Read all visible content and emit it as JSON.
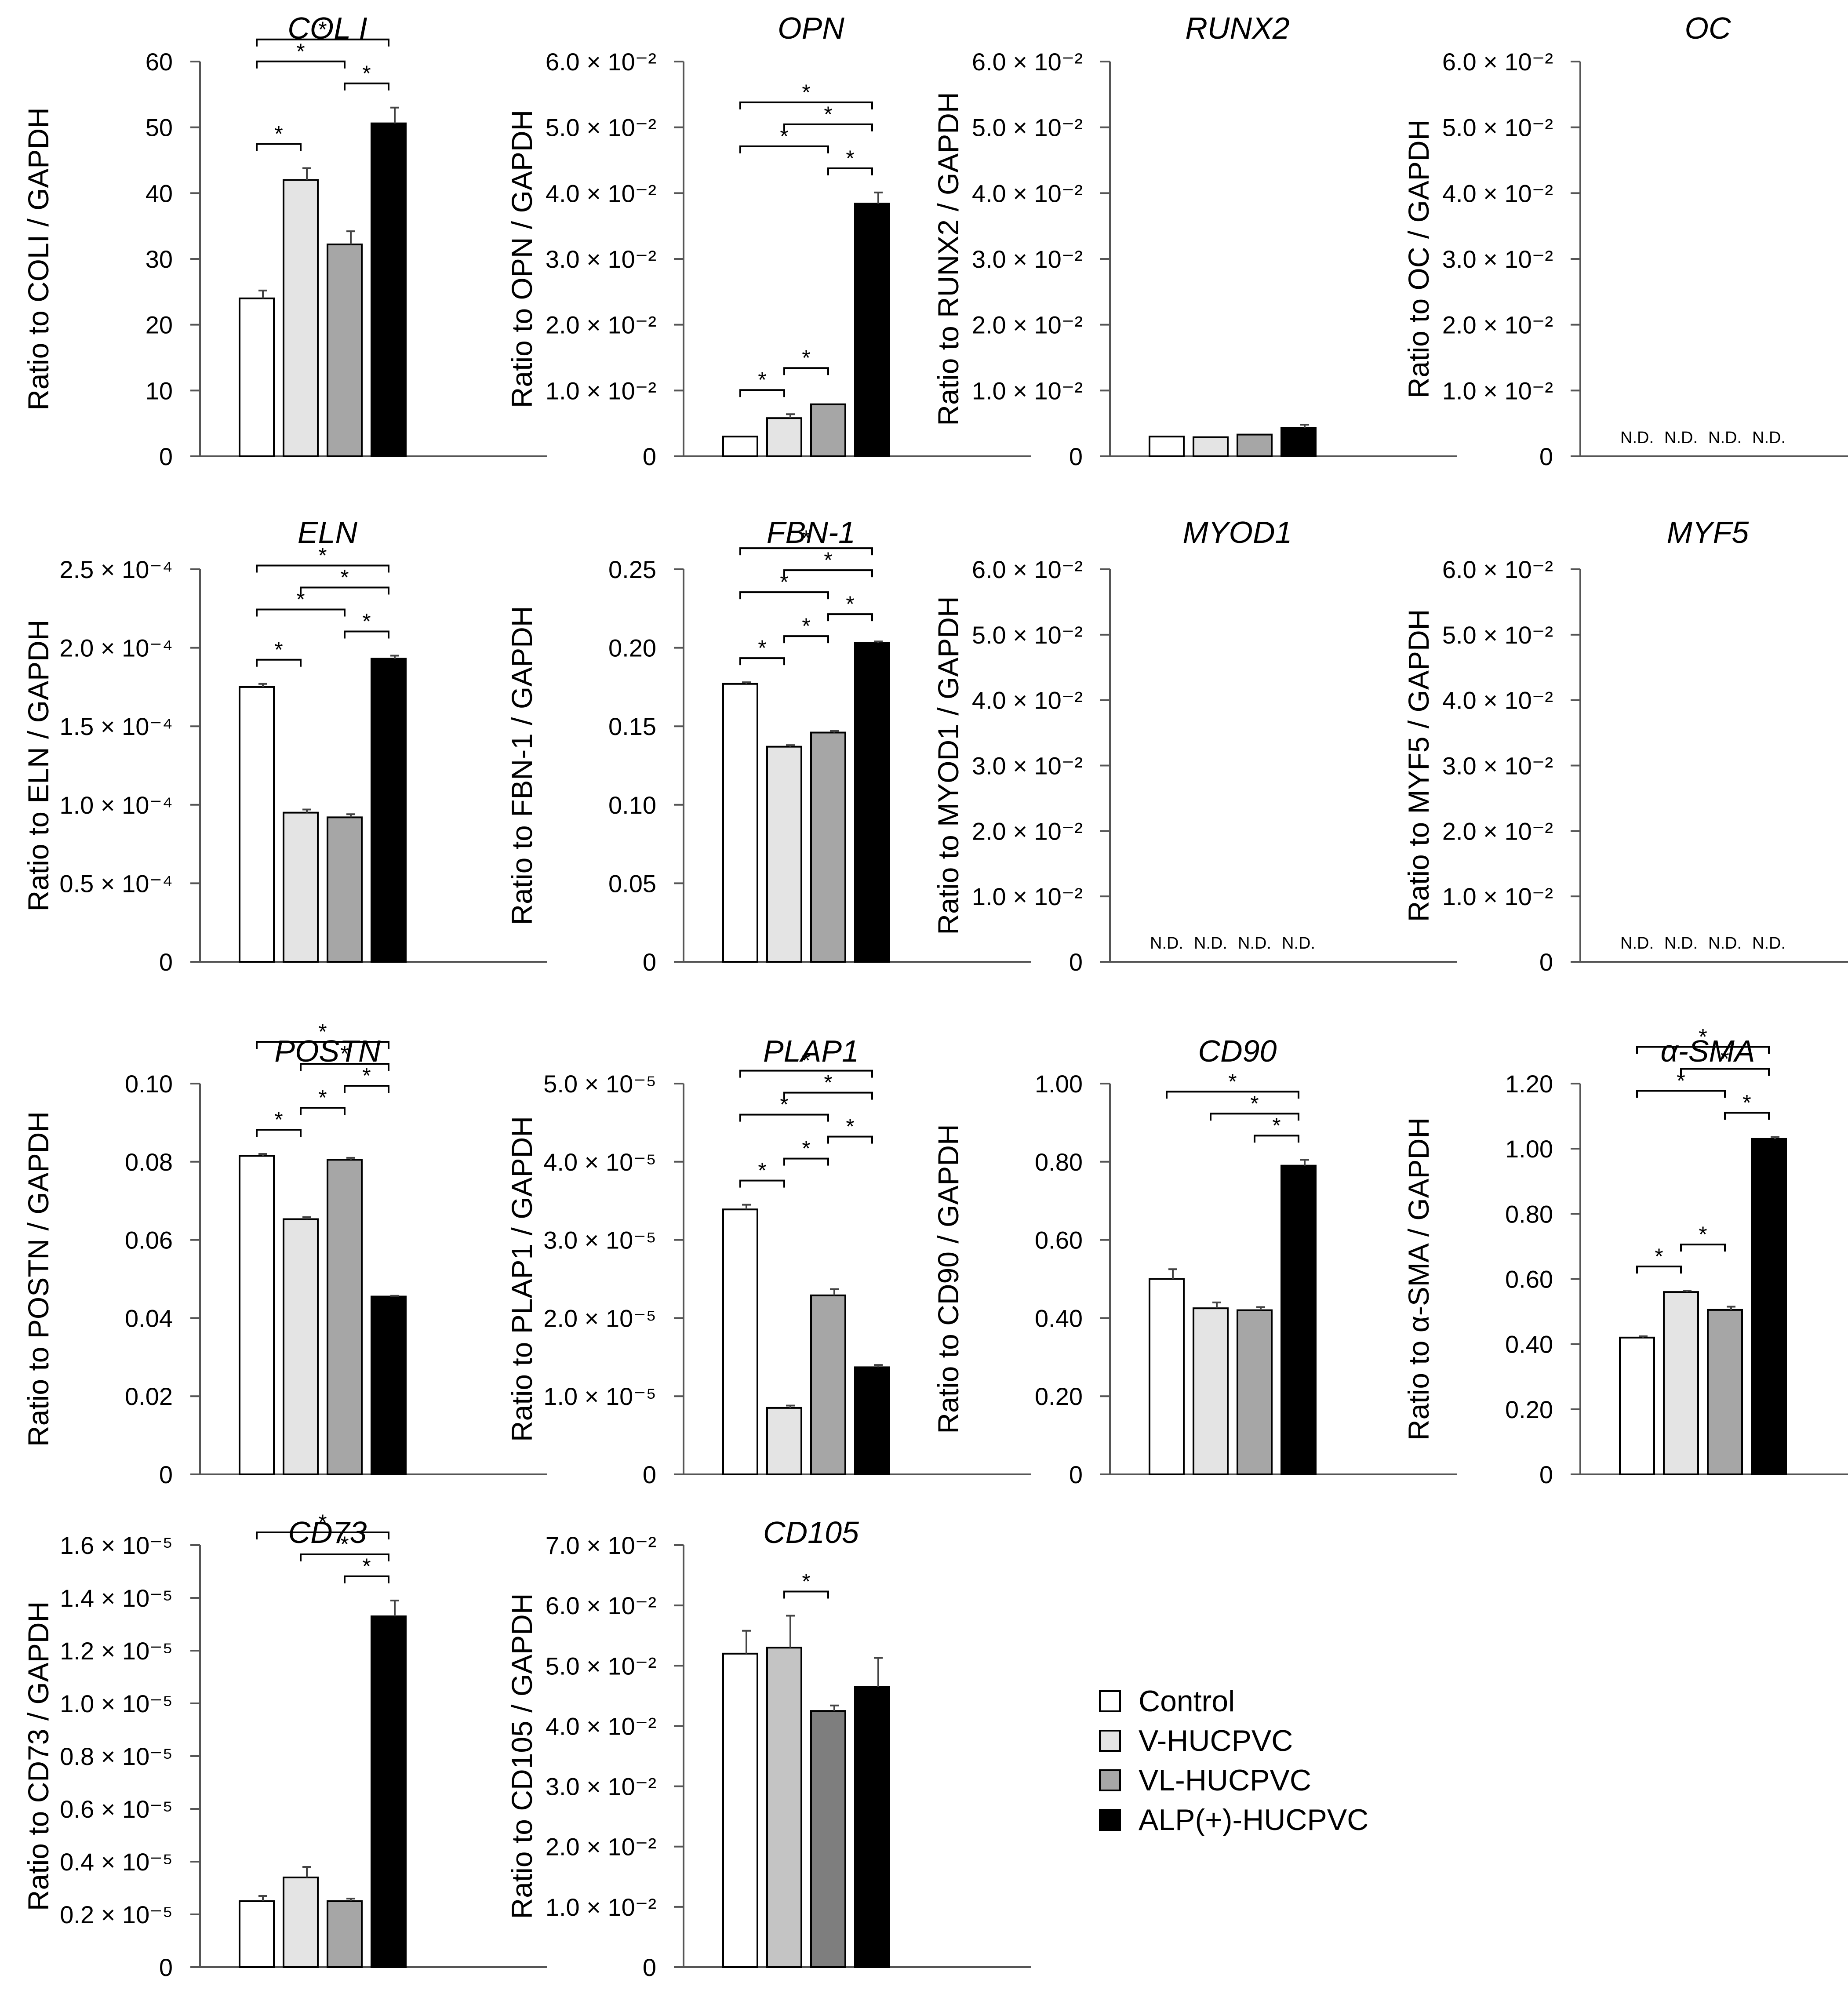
{
  "groups": [
    {
      "name": "Control",
      "color": "#ffffff"
    },
    {
      "name": "V-HUCPVC",
      "color": "#e4e4e4"
    },
    {
      "name": "VL-HUCPVC",
      "color": "#a6a6a6"
    },
    {
      "name": "ALP(+)-HUCPVC",
      "color": "#000000"
    }
  ],
  "chart_data": [
    {
      "type": "bar",
      "title": "COL I",
      "ylabel": "Ratio to COLI / GAPDH",
      "ylim": [
        0,
        60
      ],
      "ticks": [
        0,
        10,
        20,
        30,
        40,
        50,
        60
      ],
      "tick_labels": [
        "0",
        "10",
        "20",
        "30",
        "40",
        "50",
        "60"
      ],
      "categories": [
        "Control",
        "V-HUCPVC",
        "VL-HUCPVC",
        "ALP(+)-HUCPVC"
      ],
      "values": [
        24,
        42,
        32.2,
        50.6
      ],
      "errors": [
        1.2,
        1.8,
        2.0,
        2.4
      ],
      "brackets": [
        [
          0,
          3
        ],
        [
          0,
          2
        ],
        [
          0,
          1
        ],
        [
          2,
          3
        ]
      ],
      "nd": false
    },
    {
      "type": "bar",
      "title": "OPN",
      "ylabel": "Ratio to OPN / GAPDH",
      "ylim": [
        0,
        0.06
      ],
      "ticks": [
        0,
        0.01,
        0.02,
        0.03,
        0.04,
        0.05,
        0.06
      ],
      "tick_labels": [
        "0",
        "1.0 × 10⁻²",
        "2.0 × 10⁻²",
        "3.0 × 10⁻²",
        "4.0 × 10⁻²",
        "5.0 × 10⁻²",
        "6.0 × 10⁻²"
      ],
      "categories": [
        "Control",
        "V-HUCPVC",
        "VL-HUCPVC",
        "ALP(+)-HUCPVC"
      ],
      "values": [
        0.003,
        0.0058,
        0.0079,
        0.0384
      ],
      "errors": [
        0,
        0.0006,
        0,
        0.0017
      ],
      "brackets": [
        [
          0,
          3
        ],
        [
          1,
          3
        ],
        [
          2,
          3
        ],
        [
          0,
          2
        ],
        [
          0,
          1
        ],
        [
          1,
          2
        ]
      ],
      "nd": false
    },
    {
      "type": "bar",
      "title": "RUNX2",
      "ylabel": "Ratio to RUNX2 / GAPDH",
      "ylim": [
        0,
        0.06
      ],
      "ticks": [
        0,
        0.01,
        0.02,
        0.03,
        0.04,
        0.05,
        0.06
      ],
      "tick_labels": [
        "0",
        "1.0 × 10⁻²",
        "2.0 × 10⁻²",
        "3.0 × 10⁻²",
        "4.0 × 10⁻²",
        "5.0 × 10⁻²",
        "6.0 × 10⁻²"
      ],
      "categories": [
        "Control",
        "V-HUCPVC",
        "VL-HUCPVC",
        "ALP(+)-HUCPVC"
      ],
      "values": [
        0.003,
        0.0029,
        0.0033,
        0.0043
      ],
      "errors": [
        0,
        0,
        0,
        0.0005
      ],
      "brackets": [],
      "nd": false
    },
    {
      "type": "bar",
      "title": "OC",
      "ylabel": "Ratio to OC / GAPDH",
      "ylim": [
        0,
        0.06
      ],
      "ticks": [
        0,
        0.01,
        0.02,
        0.03,
        0.04,
        0.05,
        0.06
      ],
      "tick_labels": [
        "0",
        "1.0 × 10⁻²",
        "2.0 × 10⁻²",
        "3.0 × 10⁻²",
        "4.0 × 10⁻²",
        "5.0 × 10⁻²",
        "6.0 × 10⁻²"
      ],
      "categories": [
        "Control",
        "V-HUCPVC",
        "VL-HUCPVC",
        "ALP(+)-HUCPVC"
      ],
      "values": [
        0,
        0,
        0,
        0
      ],
      "errors": [
        0,
        0,
        0,
        0
      ],
      "brackets": [],
      "nd": true,
      "nd_label": "N.D."
    },
    {
      "type": "bar",
      "title": "ELN",
      "ylabel": "Ratio to ELN / GAPDH",
      "ylim": [
        0,
        0.00025
      ],
      "ticks": [
        0,
        5e-05,
        0.0001,
        0.00015,
        0.0002,
        0.00025
      ],
      "tick_labels": [
        "0",
        "0.5 × 10⁻⁴",
        "1.0 × 10⁻⁴",
        "1.5 × 10⁻⁴",
        "2.0 × 10⁻⁴",
        "2.5 × 10⁻⁴"
      ],
      "categories": [
        "Control",
        "V-HUCPVC",
        "VL-HUCPVC",
        "ALP(+)-HUCPVC"
      ],
      "values": [
        0.000175,
        9.5e-05,
        9.2e-05,
        0.000193
      ],
      "errors": [
        2e-06,
        2e-06,
        2e-06,
        2e-06
      ],
      "brackets": [
        [
          0,
          3
        ],
        [
          1,
          3
        ],
        [
          2,
          3
        ],
        [
          0,
          2
        ],
        [
          0,
          1
        ]
      ],
      "nd": false
    },
    {
      "type": "bar",
      "title": "FBN-1",
      "ylabel": "Ratio to FBN-1 / GAPDH",
      "ylim": [
        0,
        0.25
      ],
      "ticks": [
        0,
        0.05,
        0.1,
        0.15,
        0.2,
        0.25
      ],
      "tick_labels": [
        "0",
        "0.05",
        "0.10",
        "0.15",
        "0.20",
        "0.25"
      ],
      "categories": [
        "Control",
        "V-HUCPVC",
        "VL-HUCPVC",
        "ALP(+)-HUCPVC"
      ],
      "values": [
        0.177,
        0.137,
        0.146,
        0.203
      ],
      "errors": [
        0.001,
        0.001,
        0.001,
        0.001
      ],
      "brackets": [
        [
          0,
          3
        ],
        [
          1,
          3
        ],
        [
          2,
          3
        ],
        [
          0,
          2
        ],
        [
          0,
          1
        ],
        [
          1,
          2
        ]
      ],
      "nd": false
    },
    {
      "type": "bar",
      "title": "MYOD1",
      "ylabel": "Ratio to MYOD1 / GAPDH",
      "ylim": [
        0,
        0.06
      ],
      "ticks": [
        0,
        0.01,
        0.02,
        0.03,
        0.04,
        0.05,
        0.06
      ],
      "tick_labels": [
        "0",
        "1.0 × 10⁻²",
        "2.0 × 10⁻²",
        "3.0 × 10⁻²",
        "4.0 × 10⁻²",
        "5.0 × 10⁻²",
        "6.0 × 10⁻²"
      ],
      "categories": [
        "Control",
        "V-HUCPVC",
        "VL-HUCPVC",
        "ALP(+)-HUCPVC"
      ],
      "values": [
        0,
        0,
        0,
        0
      ],
      "errors": [
        0,
        0,
        0,
        0
      ],
      "brackets": [],
      "nd": true,
      "nd_label": "N.D."
    },
    {
      "type": "bar",
      "title": "MYF5",
      "ylabel": "Ratio to MYF5 / GAPDH",
      "ylim": [
        0,
        0.06
      ],
      "ticks": [
        0,
        0.01,
        0.02,
        0.03,
        0.04,
        0.05,
        0.06
      ],
      "tick_labels": [
        "0",
        "1.0 × 10⁻²",
        "2.0 × 10⁻²",
        "3.0 × 10⁻²",
        "4.0 × 10⁻²",
        "5.0 × 10⁻²",
        "6.0 × 10⁻²"
      ],
      "categories": [
        "Control",
        "V-HUCPVC",
        "VL-HUCPVC",
        "ALP(+)-HUCPVC"
      ],
      "values": [
        0,
        0,
        0,
        0
      ],
      "errors": [
        0,
        0,
        0,
        0
      ],
      "brackets": [],
      "nd": true,
      "nd_label": "N.D."
    },
    {
      "type": "bar",
      "title": "POSTN",
      "ylabel": "Ratio to POSTN / GAPDH",
      "ylim": [
        0,
        0.1
      ],
      "ticks": [
        0,
        0.02,
        0.04,
        0.06,
        0.08,
        0.1
      ],
      "tick_labels": [
        "0",
        "0.02",
        "0.04",
        "0.06",
        "0.08",
        "0.10"
      ],
      "categories": [
        "Control",
        "V-HUCPVC",
        "VL-HUCPVC",
        "ALP(+)-HUCPVC"
      ],
      "values": [
        0.0815,
        0.0653,
        0.0805,
        0.0455
      ],
      "errors": [
        0.0005,
        0.0005,
        0.0005,
        0.0002
      ],
      "brackets": [
        [
          0,
          3
        ],
        [
          1,
          3
        ],
        [
          0,
          1
        ],
        [
          1,
          2
        ],
        [
          2,
          3
        ]
      ],
      "nd": false
    },
    {
      "type": "bar",
      "title": "PLAP1",
      "ylabel": "Ratio to PLAP1 / GAPDH",
      "ylim": [
        0,
        5e-05
      ],
      "ticks": [
        0,
        1e-05,
        2e-05,
        3e-05,
        4e-05,
        5e-05
      ],
      "tick_labels": [
        "0",
        "1.0 × 10⁻⁵",
        "2.0 × 10⁻⁵",
        "3.0 × 10⁻⁵",
        "4.0 × 10⁻⁵",
        "5.0 × 10⁻⁵"
      ],
      "categories": [
        "Control",
        "V-HUCPVC",
        "VL-HUCPVC",
        "ALP(+)-HUCPVC"
      ],
      "values": [
        3.39e-05,
        8.5e-06,
        2.29e-05,
        1.37e-05
      ],
      "errors": [
        6e-07,
        3e-07,
        8e-07,
        3e-07
      ],
      "brackets": [
        [
          0,
          3
        ],
        [
          0,
          2
        ],
        [
          0,
          1
        ],
        [
          1,
          3
        ],
        [
          1,
          2
        ],
        [
          2,
          3
        ]
      ],
      "nd": false
    },
    {
      "type": "bar",
      "title": "CD90",
      "ylabel": "Ratio to CD90 / GAPDH",
      "ylim": [
        0,
        1.0
      ],
      "ticks": [
        0,
        0.2,
        0.4,
        0.6,
        0.8,
        1.0
      ],
      "tick_labels": [
        "0",
        "0.20",
        "0.40",
        "0.60",
        "0.80",
        "1.00"
      ],
      "categories": [
        "Control",
        "V-HUCPVC",
        "VL-HUCPVC",
        "ALP(+)-HUCPVC"
      ],
      "values": [
        0.5,
        0.425,
        0.42,
        0.79
      ],
      "errors": [
        0.025,
        0.015,
        0.008,
        0.015
      ],
      "brackets": [
        [
          0,
          3
        ],
        [
          1,
          3
        ],
        [
          2,
          3
        ]
      ],
      "nd": false
    },
    {
      "type": "bar",
      "title": "α-SMA",
      "ylabel": "Ratio to α-SMA / GAPDH",
      "ylim": [
        0,
        1.2
      ],
      "ticks": [
        0,
        0.2,
        0.4,
        0.6,
        0.8,
        1.0,
        1.2
      ],
      "tick_labels": [
        "0",
        "0.20",
        "0.40",
        "0.60",
        "0.80",
        "1.00",
        "1.20"
      ],
      "categories": [
        "Control",
        "V-HUCPVC",
        "VL-HUCPVC",
        "ALP(+)-HUCPVC"
      ],
      "values": [
        0.42,
        0.56,
        0.505,
        1.03
      ],
      "errors": [
        0.004,
        0.004,
        0.01,
        0.006
      ],
      "brackets": [
        [
          0,
          3
        ],
        [
          1,
          3
        ],
        [
          2,
          3
        ],
        [
          0,
          2
        ],
        [
          0,
          1
        ],
        [
          1,
          2
        ]
      ],
      "nd": false
    },
    {
      "type": "bar",
      "title": "CD73",
      "ylabel": "Ratio to CD73 / GAPDH",
      "ylim": [
        0,
        1.6e-05
      ],
      "ticks": [
        0,
        2e-06,
        4e-06,
        6e-06,
        8e-06,
        1e-05,
        1.2e-05,
        1.4e-05,
        1.6e-05
      ],
      "tick_labels": [
        "0",
        "0.2 × 10⁻⁵",
        "0.4 × 10⁻⁵",
        "0.6 × 10⁻⁵",
        "0.8 × 10⁻⁵",
        "1.0 × 10⁻⁵",
        "1.2 × 10⁻⁵",
        "1.4 × 10⁻⁵",
        "1.6 × 10⁻⁵"
      ],
      "categories": [
        "Control",
        "V-HUCPVC",
        "VL-HUCPVC",
        "ALP(+)-HUCPVC"
      ],
      "values": [
        2.5e-06,
        3.4e-06,
        2.5e-06,
        1.33e-05
      ],
      "errors": [
        2e-07,
        4e-07,
        1e-07,
        6e-07
      ],
      "brackets": [
        [
          0,
          3
        ],
        [
          1,
          3
        ],
        [
          2,
          3
        ]
      ],
      "nd": false
    },
    {
      "type": "bar",
      "title": "CD105",
      "ylabel": "Ratio to CD105 / GAPDH",
      "ylim": [
        0,
        0.07
      ],
      "ticks": [
        0,
        0.01,
        0.02,
        0.03,
        0.04,
        0.05,
        0.06,
        0.07
      ],
      "tick_labels": [
        "0",
        "1.0 × 10⁻²",
        "2.0 × 10⁻²",
        "3.0 × 10⁻²",
        "4.0 × 10⁻²",
        "5.0 × 10⁻²",
        "6.0 × 10⁻²",
        "7.0 × 10⁻²"
      ],
      "categories": [
        "Control",
        "V-HUCPVC",
        "VL-HUCPVC",
        "ALP(+)-HUCPVC"
      ],
      "values": [
        0.052,
        0.053,
        0.0425,
        0.0465
      ],
      "errors": [
        0.0038,
        0.0053,
        0.0009,
        0.0048
      ],
      "brackets": [
        [
          1,
          2
        ]
      ],
      "nd": false,
      "colors": [
        "#ffffff",
        "#c4c4c4",
        "#7e7e7e",
        "#000000"
      ]
    }
  ],
  "significance_mark": "*"
}
